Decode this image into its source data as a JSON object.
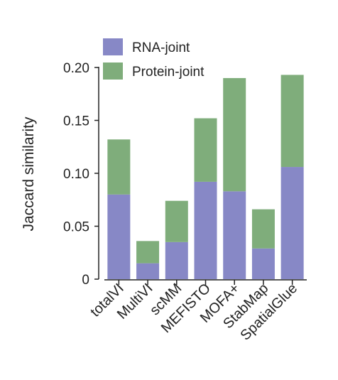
{
  "chart_data": {
    "type": "bar",
    "stacked": true,
    "categories": [
      "totalVI",
      "MultiVI",
      "scMM",
      "MEFISTO",
      "MOFA+",
      "StabMap",
      "SpatialGlue"
    ],
    "series": [
      {
        "name": "RNA-joint",
        "color": "#8788c6",
        "values": [
          0.08,
          0.015,
          0.035,
          0.092,
          0.083,
          0.029,
          0.106
        ]
      },
      {
        "name": "Protein-joint",
        "color": "#7fad7b",
        "values": [
          0.052,
          0.021,
          0.039,
          0.06,
          0.107,
          0.037,
          0.087
        ]
      }
    ],
    "title": "",
    "xlabel": "",
    "ylabel": "Jaccard similarity",
    "ylim": [
      0,
      0.2
    ],
    "yticks": [
      0,
      0.05,
      0.1,
      0.15,
      0.2
    ],
    "ytick_labels": [
      "0",
      "0.05",
      "0.10",
      "0.15",
      "0.20"
    ],
    "grid": false,
    "legend_position": "top"
  }
}
